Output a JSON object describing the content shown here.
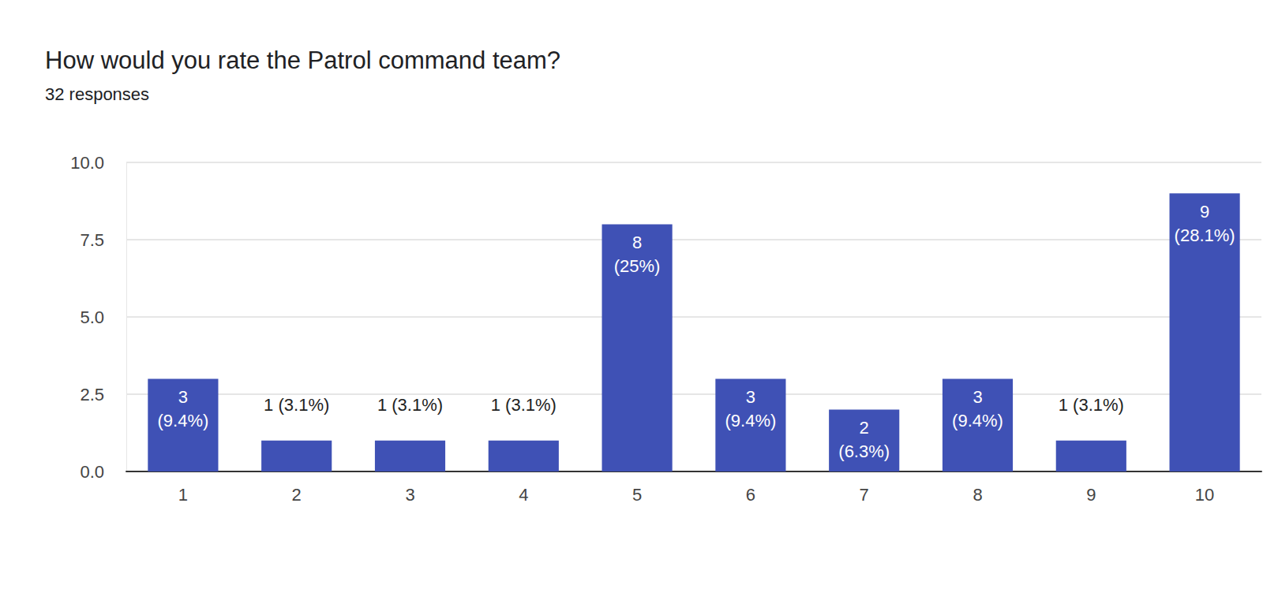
{
  "chart_data": {
    "type": "bar",
    "title": "How would you rate the Patrol command team?",
    "subtitle": "32 responses",
    "categories": [
      "1",
      "2",
      "3",
      "4",
      "5",
      "6",
      "7",
      "8",
      "9",
      "10"
    ],
    "values": [
      3,
      1,
      1,
      1,
      8,
      3,
      2,
      3,
      1,
      9
    ],
    "value_labels": [
      "3 (9.4%)",
      "1 (3.1%)",
      "1 (3.1%)",
      "1 (3.1%)",
      "8 (25%)",
      "3 (9.4%)",
      "2 (6.3%)",
      "3 (9.4%)",
      "1 (3.1%)",
      "9 (28.1%)"
    ],
    "color": "#3f51b5",
    "ylim": [
      0,
      10
    ],
    "yticks": [
      {
        "value": 0,
        "label": "0.0"
      },
      2.5,
      {
        "value": 5,
        "label": "5.0"
      },
      7.5,
      {
        "value": 10,
        "label": "10.0"
      }
    ],
    "grid": true,
    "data_labels": true
  }
}
